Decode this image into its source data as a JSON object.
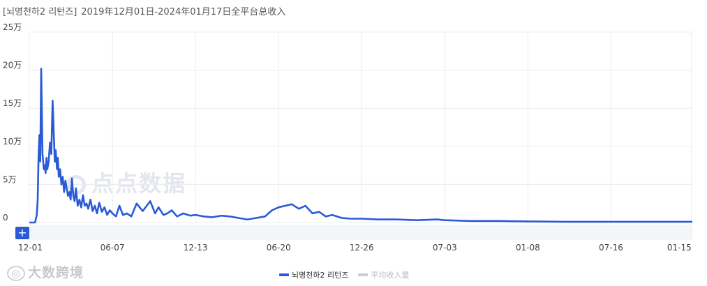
{
  "header": {
    "app_name": "[뇌명천하2 리턴즈]",
    "subtitle": "2019年12月01日-2024年01月17日全平台总收入"
  },
  "colors": {
    "series_main": "#2a5bd7",
    "series_avg": "#cccccc",
    "grid": "#ececec",
    "range_bar": "#f4f5f9"
  },
  "watermarks": {
    "center": "点点数据",
    "bottom": "大数跨境",
    "bottom_icon": "camera-logo-icon"
  },
  "controls": {
    "expand_label": "+"
  },
  "chart_data": {
    "type": "line",
    "title": "",
    "xlabel": "",
    "ylabel": "",
    "y_tick_labels": [
      "0",
      "5万",
      "10万",
      "15万",
      "20万",
      "25万"
    ],
    "y_ticks": [
      0,
      50000,
      100000,
      150000,
      200000,
      250000
    ],
    "ylim": [
      0,
      250000
    ],
    "x_tick_labels": [
      "12-01",
      "06-07",
      "12-13",
      "06-20",
      "12-26",
      "07-03",
      "01-08",
      "07-16",
      "01-15"
    ],
    "x_tick_dates": [
      "2019-12-01",
      "2020-06-07",
      "2020-12-13",
      "2021-06-20",
      "2021-12-26",
      "2022-07-03",
      "2023-01-08",
      "2023-07-16",
      "2024-01-15"
    ],
    "xlim": [
      "2019-12-01",
      "2024-01-17"
    ],
    "grid": true,
    "legend_position": "bottom-center",
    "series": [
      {
        "name": "뇌명천하2 리턴즈",
        "x": [
          "2019-12-01",
          "2019-12-14",
          "2019-12-18",
          "2019-12-20",
          "2019-12-22",
          "2019-12-24",
          "2019-12-26",
          "2019-12-28",
          "2019-12-31",
          "2020-01-03",
          "2020-01-05",
          "2020-01-07",
          "2020-01-09",
          "2020-01-11",
          "2020-01-14",
          "2020-01-17",
          "2020-01-20",
          "2020-01-23",
          "2020-01-26",
          "2020-01-28",
          "2020-01-30",
          "2020-02-02",
          "2020-02-04",
          "2020-02-06",
          "2020-02-09",
          "2020-02-12",
          "2020-02-15",
          "2020-02-18",
          "2020-02-21",
          "2020-02-24",
          "2020-02-27",
          "2020-03-01",
          "2020-03-04",
          "2020-03-07",
          "2020-03-10",
          "2020-03-13",
          "2020-03-16",
          "2020-03-20",
          "2020-03-24",
          "2020-03-28",
          "2020-04-01",
          "2020-04-05",
          "2020-04-09",
          "2020-04-13",
          "2020-04-18",
          "2020-04-23",
          "2020-04-28",
          "2020-05-03",
          "2020-05-08",
          "2020-05-14",
          "2020-05-20",
          "2020-05-26",
          "2020-06-01",
          "2020-06-07",
          "2020-06-15",
          "2020-06-23",
          "2020-07-01",
          "2020-07-10",
          "2020-07-20",
          "2020-08-01",
          "2020-08-15",
          "2020-09-01",
          "2020-09-12",
          "2020-09-20",
          "2020-10-01",
          "2020-10-10",
          "2020-10-20",
          "2020-11-01",
          "2020-11-15",
          "2020-12-01",
          "2020-12-13",
          "2021-01-01",
          "2021-01-20",
          "2021-02-10",
          "2021-03-01",
          "2021-03-20",
          "2021-04-10",
          "2021-05-01",
          "2021-05-20",
          "2021-06-05",
          "2021-06-20",
          "2021-07-05",
          "2021-07-20",
          "2021-08-05",
          "2021-08-20",
          "2021-09-05",
          "2021-09-20",
          "2021-10-05",
          "2021-10-20",
          "2021-11-10",
          "2021-12-01",
          "2021-12-26",
          "2022-02-01",
          "2022-03-15",
          "2022-05-01",
          "2022-06-15",
          "2022-07-03",
          "2022-09-01",
          "2022-11-01",
          "2023-01-08",
          "2023-04-01",
          "2023-07-16",
          "2023-10-01",
          "2024-01-17"
        ],
        "values": [
          0,
          0,
          10000,
          30000,
          85000,
          115000,
          80000,
          202000,
          90000,
          70000,
          75000,
          65000,
          85000,
          70000,
          80000,
          105000,
          90000,
          160000,
          110000,
          80000,
          95000,
          70000,
          85000,
          60000,
          70000,
          50000,
          60000,
          40000,
          55000,
          45000,
          35000,
          40000,
          30000,
          58000,
          35000,
          28000,
          45000,
          22000,
          30000,
          20000,
          36000,
          22000,
          25000,
          18000,
          30000,
          15000,
          22000,
          12000,
          26000,
          14000,
          20000,
          10000,
          16000,
          12000,
          8000,
          22000,
          10000,
          12000,
          8000,
          25000,
          15000,
          28000,
          12000,
          20000,
          10000,
          12000,
          16000,
          8000,
          12000,
          9000,
          10000,
          8000,
          7000,
          9000,
          8000,
          6000,
          4000,
          6000,
          8000,
          16000,
          20000,
          22000,
          24000,
          18000,
          22000,
          12000,
          14000,
          8000,
          10000,
          6000,
          5000,
          5000,
          4000,
          4000,
          3000,
          4000,
          3000,
          2000,
          2000,
          1500,
          1000,
          1000,
          1000,
          1000
        ]
      },
      {
        "name": "平均收入量",
        "values": []
      }
    ]
  }
}
